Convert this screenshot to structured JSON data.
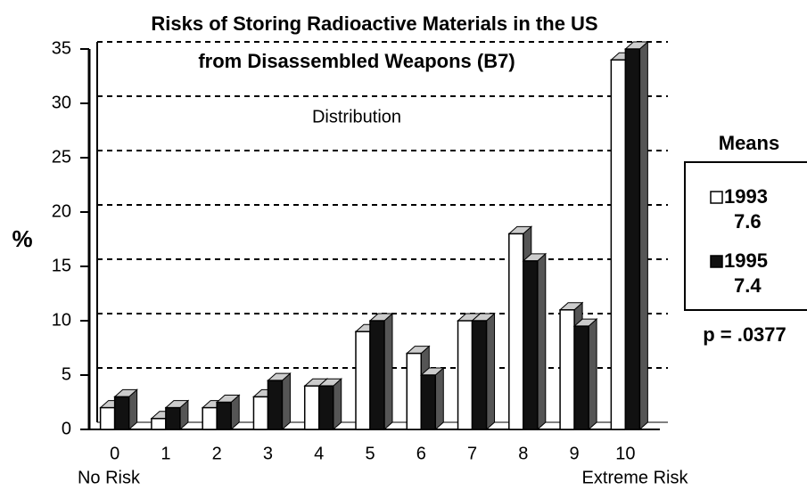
{
  "chart_data": {
    "type": "bar",
    "title": "Risks of Storing Radioactive Materials in the US",
    "subtitle": "from Disassembled Weapons (B7)",
    "annotation": "Distribution",
    "y_label": "%",
    "x_low_label": "No Risk",
    "x_high_label": "Extreme Risk",
    "legend_title": "Means",
    "p_value_label": "p = .0377",
    "categories": [
      "0",
      "1",
      "2",
      "3",
      "4",
      "5",
      "6",
      "7",
      "8",
      "9",
      "10"
    ],
    "series": [
      {
        "name": "1993",
        "color": "#ffffff",
        "mean": 7.6,
        "values": [
          2,
          1,
          2,
          3,
          4,
          9,
          7,
          10,
          18,
          11,
          34
        ]
      },
      {
        "name": "1995",
        "color": "#111111",
        "mean": 7.4,
        "values": [
          3,
          2,
          2.5,
          4.5,
          4,
          10,
          5,
          10,
          15.5,
          9.5,
          35
        ]
      }
    ],
    "ylim": [
      0,
      35
    ],
    "yticks": [
      0,
      5,
      10,
      15,
      20,
      25,
      30,
      35
    ],
    "grid": true
  }
}
